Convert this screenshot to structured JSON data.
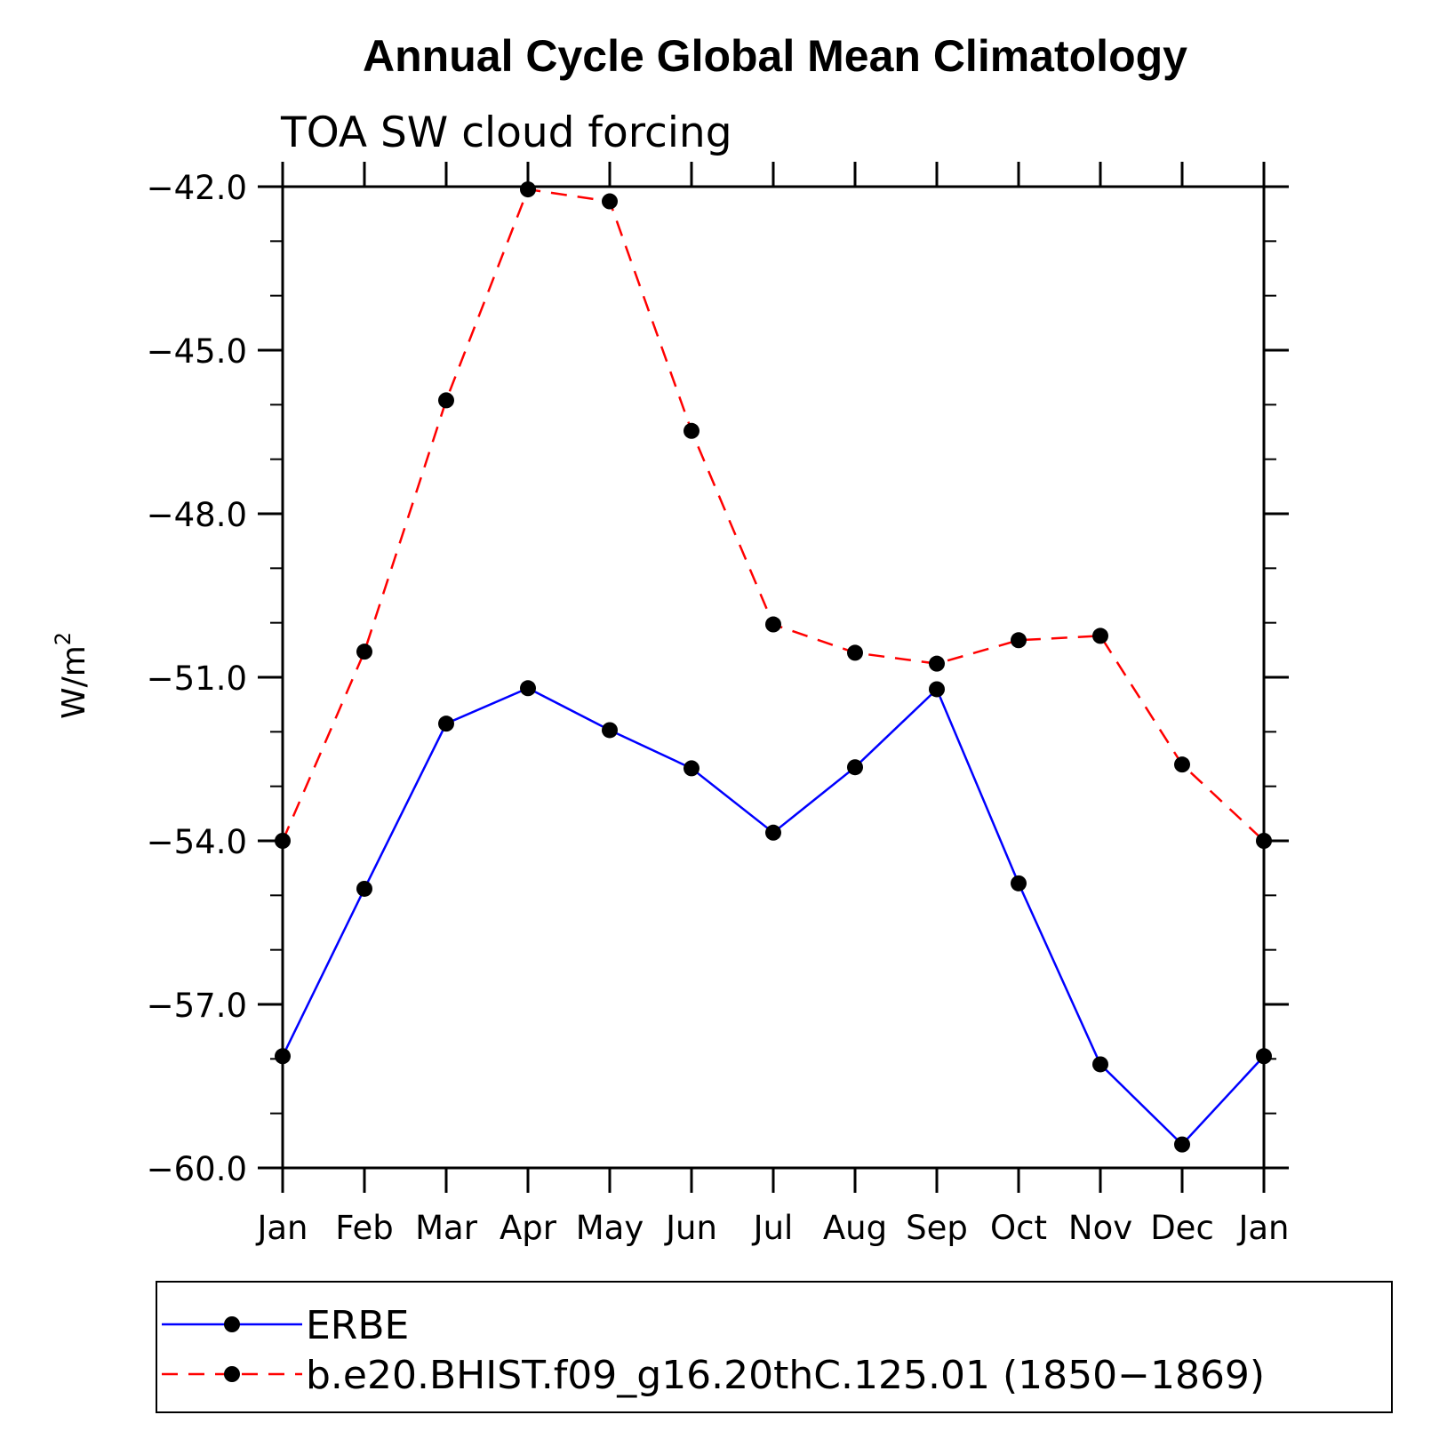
{
  "chart_data": {
    "type": "line",
    "title": "Annual Cycle Global Mean Climatology",
    "subtitle": "TOA SW cloud forcing",
    "ylabel_base": "W/m",
    "ylabel_sup": "2",
    "xlabel": "",
    "categories": [
      "Jan",
      "Feb",
      "Mar",
      "Apr",
      "May",
      "Jun",
      "Jul",
      "Aug",
      "Sep",
      "Oct",
      "Nov",
      "Dec",
      "Jan"
    ],
    "ylim": [
      -60.0,
      -42.0
    ],
    "yticks": [
      -42.0,
      -45.0,
      -48.0,
      -51.0,
      -54.0,
      -57.0,
      -60.0
    ],
    "ytick_labels": [
      "−42.0",
      "−45.0",
      "−48.0",
      "−51.0",
      "−54.0",
      "−57.0",
      "−60.0"
    ],
    "series": [
      {
        "name": "ERBE",
        "color": "#0000ff",
        "dash": "solid",
        "values": [
          -57.95,
          -54.88,
          -51.85,
          -51.2,
          -51.97,
          -52.67,
          -53.85,
          -52.65,
          -51.22,
          -54.78,
          -58.1,
          -59.57,
          -57.95
        ]
      },
      {
        "name": "b.e20.BHIST.f09_g16.20thC.125.01 (1850−1869)",
        "color": "#ff0000",
        "dash": "dashed",
        "values": [
          -54.0,
          -50.53,
          -45.92,
          -42.05,
          -42.27,
          -46.48,
          -50.03,
          -50.55,
          -50.75,
          -50.32,
          -50.24,
          -52.6,
          -54.0
        ]
      }
    ],
    "marker_color": "#000000",
    "legend_position": "bottom"
  }
}
